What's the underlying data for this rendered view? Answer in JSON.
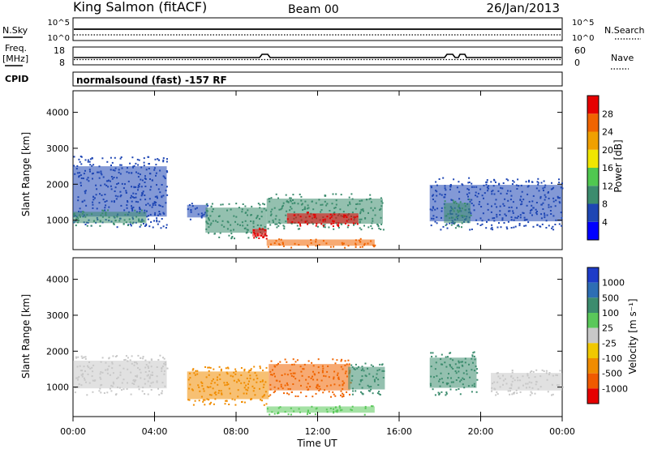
{
  "header": {
    "station": "King Salmon (fitACF)",
    "beam": "Beam 00",
    "date": "26/Jan/2013"
  },
  "summary": {
    "nsky_label": "N.Sky",
    "nsearch_label": "N.Search",
    "nsky_ticks": [
      "10^5",
      "10^0"
    ],
    "nsearch_ticks": [
      "10^5",
      "10^0"
    ],
    "freq_label_1": "Freq.",
    "freq_label_2": "[MHz]",
    "freq_ticks": [
      "18",
      "8"
    ],
    "nave_label": "Nave",
    "nave_ticks": [
      "60",
      "0"
    ],
    "cpid_label": "CPID",
    "cpid_text": "normalsound (fast) -157 RF"
  },
  "axes": {
    "xlabel": "Time UT",
    "x_ticks": [
      "00:00",
      "04:00",
      "08:00",
      "12:00",
      "16:00",
      "20:00",
      "00:00"
    ],
    "x_range_hours": [
      0,
      24
    ],
    "ylabel": "Slant Range [km]",
    "y_ticks": [
      "1000",
      "2000",
      "3000",
      "4000"
    ],
    "y_range_km": [
      180,
      4600
    ]
  },
  "colorbars": {
    "power": {
      "label": "Power [dB]",
      "ticks": [
        "4",
        "8",
        "12",
        "16",
        "20",
        "24",
        "28"
      ],
      "colors": [
        "#0000ff",
        "#1e46b4",
        "#3c8c6e",
        "#50c850",
        "#f0e600",
        "#f0a000",
        "#f06400",
        "#e60000"
      ]
    },
    "velocity": {
      "label": "Velocity [m s⁻¹]",
      "ticks": [
        "1000",
        "500",
        "100",
        "25",
        "-25",
        "-100",
        "-500",
        "-1000"
      ],
      "colors": [
        "#1e3cc8",
        "#2d6eb4",
        "#3c8c6e",
        "#5ac85a",
        "#c8c8c8",
        "#f0c800",
        "#f08c00",
        "#f05a00",
        "#e60000"
      ]
    }
  },
  "chart_data": [
    {
      "type": "heatmap",
      "title": "Power",
      "x_unit": "hours UT",
      "y_unit": "km",
      "regions": [
        {
          "t": [
            0.0,
            4.6
          ],
          "r": [
            800,
            2800
          ],
          "level": "weak",
          "color": "#1e46b4"
        },
        {
          "t": [
            0.0,
            3.6
          ],
          "r": [
            850,
            1300
          ],
          "level": "moderate",
          "color": "#3c8c6e"
        },
        {
          "t": [
            5.6,
            6.6
          ],
          "r": [
            1000,
            1500
          ],
          "level": "weak",
          "color": "#1e46b4"
        },
        {
          "t": [
            6.5,
            9.5
          ],
          "r": [
            500,
            1500
          ],
          "level": "moderate",
          "color": "#3c8c6e"
        },
        {
          "t": [
            8.8,
            9.5
          ],
          "r": [
            500,
            800
          ],
          "level": "strong",
          "color": "#e60000"
        },
        {
          "t": [
            9.5,
            15.2
          ],
          "r": [
            750,
            1750
          ],
          "level": "moderate",
          "color": "#3c8c6e"
        },
        {
          "t": [
            10.5,
            14.0
          ],
          "r": [
            850,
            1250
          ],
          "level": "strong",
          "color": "#e60000"
        },
        {
          "t": [
            9.5,
            14.8
          ],
          "r": [
            250,
            500
          ],
          "level": "moderate",
          "color": "#f06400"
        },
        {
          "t": [
            17.5,
            24.0
          ],
          "r": [
            750,
            2200
          ],
          "level": "weak",
          "color": "#1e46b4"
        },
        {
          "t": [
            18.2,
            19.5
          ],
          "r": [
            800,
            1600
          ],
          "level": "moderate",
          "color": "#3c8c6e"
        }
      ]
    },
    {
      "type": "heatmap",
      "title": "Velocity",
      "x_unit": "hours UT",
      "y_unit": "km",
      "regions": [
        {
          "t": [
            0.0,
            4.6
          ],
          "r": [
            800,
            1900
          ],
          "level": "ground scatter",
          "color": "#c8c8c8"
        },
        {
          "t": [
            5.6,
            9.6
          ],
          "r": [
            500,
            1600
          ],
          "level": "-500",
          "color": "#f08c00"
        },
        {
          "t": [
            9.6,
            13.6
          ],
          "r": [
            750,
            1800
          ],
          "level": "-500",
          "color": "#f06400"
        },
        {
          "t": [
            13.5,
            15.3
          ],
          "r": [
            800,
            1700
          ],
          "level": "100",
          "color": "#3c8c6e"
        },
        {
          "t": [
            9.5,
            14.8
          ],
          "r": [
            250,
            500
          ],
          "level": "25",
          "color": "#5ac85a"
        },
        {
          "t": [
            17.5,
            19.8
          ],
          "r": [
            800,
            2000
          ],
          "level": "100",
          "color": "#3c8c6e"
        },
        {
          "t": [
            20.5,
            24.0
          ],
          "r": [
            800,
            1500
          ],
          "level": "ground scatter",
          "color": "#c8c8c8"
        }
      ]
    }
  ]
}
